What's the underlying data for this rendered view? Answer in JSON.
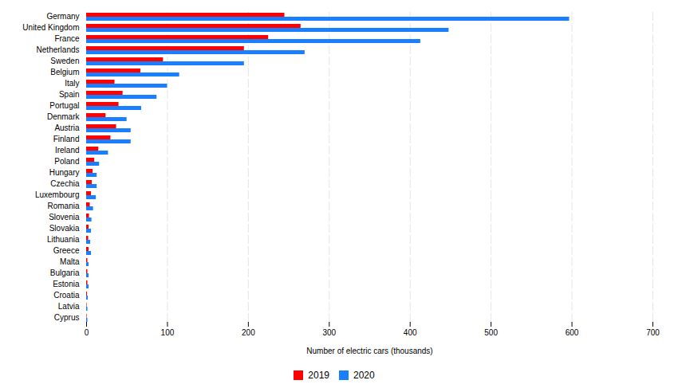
{
  "chart_data": {
    "type": "bar",
    "orientation": "horizontal",
    "categories": [
      "Cyprus",
      "Latvia",
      "Croatia",
      "Estonia",
      "Bulgaria",
      "Malta",
      "Greece",
      "Lithuania",
      "Slovakia",
      "Slovenia",
      "Romania",
      "Luxembourg",
      "Czechia",
      "Hungary",
      "Poland",
      "Ireland",
      "Finland",
      "Austria",
      "Denmark",
      "Portugal",
      "Spain",
      "Italy",
      "Belgium",
      "Sweden",
      "Netherlands",
      "France",
      "United Kingdom",
      "Germany"
    ],
    "series": [
      {
        "name": "2019",
        "color": "#FF0000",
        "values": [
          0.5,
          0.5,
          1.0,
          1.5,
          1.5,
          1.5,
          3.0,
          2.5,
          3.0,
          3.5,
          4.5,
          6.0,
          7.0,
          8.0,
          10.0,
          15.0,
          30.0,
          37.0,
          24.0,
          40.0,
          45.0,
          35.0,
          67.0,
          95.0,
          195.0,
          225.0,
          265.0,
          245.0
        ]
      },
      {
        "name": "2020",
        "color": "#1A7FFF",
        "values": [
          1.5,
          1.5,
          2.0,
          3.0,
          3.0,
          3.0,
          6.0,
          5.0,
          6.0,
          6.5,
          8.5,
          12.0,
          13.0,
          13.0,
          16.0,
          27.0,
          55.0,
          55.0,
          50.0,
          68.0,
          87.0,
          100.0,
          115.0,
          195.0,
          270.0,
          413.0,
          448.0,
          597.0
        ]
      }
    ],
    "xlabel": "Number of electric cars (thousands)",
    "xlim": [
      0,
      700
    ],
    "xticks": [
      0,
      100,
      200,
      300,
      400,
      500,
      600,
      700
    ],
    "grid": true,
    "legend": "bottom"
  }
}
